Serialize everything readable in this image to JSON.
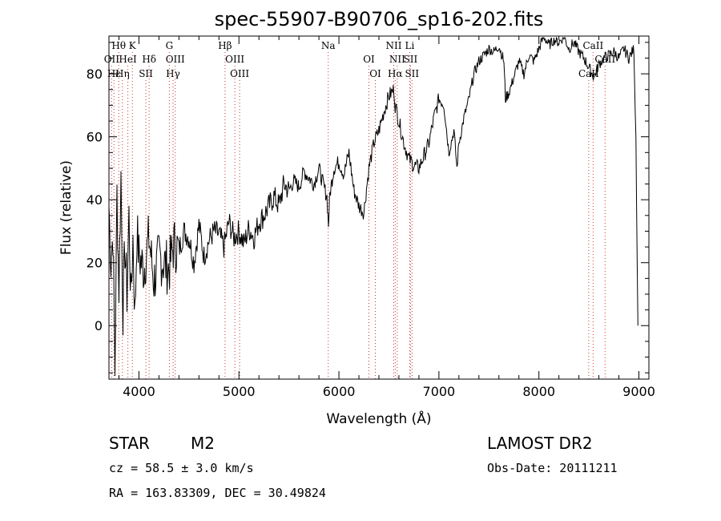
{
  "chart_data": {
    "type": "line",
    "title": "spec-55907-B90706_sp16-202.fits",
    "xlabel": "Wavelength (Å)",
    "ylabel": "Flux (relative)",
    "xlim": [
      3700,
      9100
    ],
    "ylim": [
      -17,
      92
    ],
    "xticks": [
      4000,
      5000,
      6000,
      7000,
      8000,
      9000
    ],
    "yticks": [
      0,
      20,
      40,
      60,
      80
    ],
    "ytick_labels": [
      "0",
      "20",
      "40",
      "60",
      "80"
    ],
    "grid": false,
    "legend": "none",
    "series": [
      {
        "values_x": [
          3700,
          3720,
          3740,
          3760,
          3780,
          3800,
          3820,
          3840,
          3860,
          3880,
          3900,
          3920,
          3940,
          3960,
          3980,
          4000,
          4050,
          4100,
          4150,
          4200,
          4250,
          4300,
          4350,
          4400,
          4450,
          4500,
          4550,
          4600,
          4650,
          4700,
          4750,
          4800,
          4850,
          4900,
          4950,
          5000,
          5050,
          5100,
          5150,
          5200,
          5250,
          5300,
          5350,
          5400,
          5450,
          5500,
          5550,
          5600,
          5650,
          5700,
          5750,
          5800,
          5850,
          5880,
          5895,
          5910,
          5950,
          6000,
          6050,
          6100,
          6150,
          6200,
          6250,
          6270,
          6300,
          6350,
          6400,
          6450,
          6500,
          6550,
          6563,
          6600,
          6650,
          6700,
          6750,
          6800,
          6850,
          6900,
          6950,
          7000,
          7050,
          7100,
          7150,
          7180,
          7200,
          7250,
          7300,
          7350,
          7400,
          7450,
          7500,
          7550,
          7600,
          7650,
          7665,
          7700,
          7750,
          7800,
          7850,
          7900,
          7950,
          8000,
          8050,
          8100,
          8150,
          8200,
          8250,
          8300,
          8350,
          8400,
          8450,
          8500,
          8550,
          8600,
          8650,
          8700,
          8750,
          8800,
          8850,
          8900,
          8950,
          8970,
          8990
        ],
        "values_y": [
          38,
          20,
          30,
          -15,
          42,
          12,
          48,
          5,
          25,
          10,
          35,
          8,
          28,
          3,
          30,
          22,
          18,
          28,
          14,
          22,
          20,
          18,
          26,
          24,
          30,
          28,
          20,
          32,
          22,
          27,
          30,
          29,
          25,
          33,
          28,
          30,
          26,
          31,
          28,
          33,
          35,
          38,
          41,
          38,
          45,
          43,
          46,
          44,
          49,
          47,
          45,
          50,
          44,
          41,
          32,
          42,
          50,
          52,
          48,
          55,
          43,
          38,
          36,
          42,
          50,
          58,
          62,
          68,
          73,
          75,
          70,
          65,
          58,
          53,
          51,
          50,
          54,
          58,
          66,
          72,
          70,
          55,
          62,
          50,
          58,
          66,
          72,
          80,
          84,
          86,
          88,
          87,
          89,
          84,
          72,
          74,
          79,
          84,
          80,
          86,
          84,
          88,
          92,
          89,
          91,
          90,
          92,
          88,
          90,
          87,
          85,
          82,
          79,
          83,
          85,
          86,
          87,
          85,
          88,
          85,
          88,
          60,
          0
        ]
      }
    ],
    "lines_top": [
      {
        "label": "Hθ",
        "x": 3798
      },
      {
        "label": "K",
        "x": 3934
      },
      {
        "label": "G",
        "x": 4304
      },
      {
        "label": "Hβ",
        "x": 4861
      },
      {
        "label": "Na",
        "x": 5893
      },
      {
        "label": "NII",
        "x": 6548
      },
      {
        "label": "Li",
        "x": 6708
      },
      {
        "label": "CaII",
        "x": 8542
      }
    ],
    "lines_mid": [
      {
        "label": "OII",
        "x": 3727
      },
      {
        "label": "HeI",
        "x": 3889
      },
      {
        "label": "Hδ",
        "x": 4102
      },
      {
        "label": "OIII",
        "x": 4363
      },
      {
        "label": "OIII",
        "x": 4959
      },
      {
        "label": "OI",
        "x": 6300
      },
      {
        "label": "NII",
        "x": 6583
      },
      {
        "label": "SII",
        "x": 6716
      },
      {
        "label": "CaII",
        "x": 8662
      }
    ],
    "lines_bot": [
      {
        "label": "Hε",
        "x": 3750
      },
      {
        "label": "Hη",
        "x": 3835
      },
      {
        "label": "SII",
        "x": 4069
      },
      {
        "label": "Hγ",
        "x": 4341
      },
      {
        "label": "OIII",
        "x": 5007
      },
      {
        "label": "OI",
        "x": 6364
      },
      {
        "label": "Hα",
        "x": 6563
      },
      {
        "label": "SII",
        "x": 6731
      },
      {
        "label": "CaII",
        "x": 8498
      }
    ]
  },
  "info": {
    "object_type": "STAR",
    "subclass": "M2",
    "survey": "LAMOST DR2",
    "cz": "cz = 58.5 ± 3.0 km/s",
    "obs_date": "Obs-Date: 20111211",
    "coords": "RA = 163.83309, DEC =  30.49824"
  },
  "colors": {
    "spectrum": "#000000",
    "line_markers": "#cc3333"
  }
}
